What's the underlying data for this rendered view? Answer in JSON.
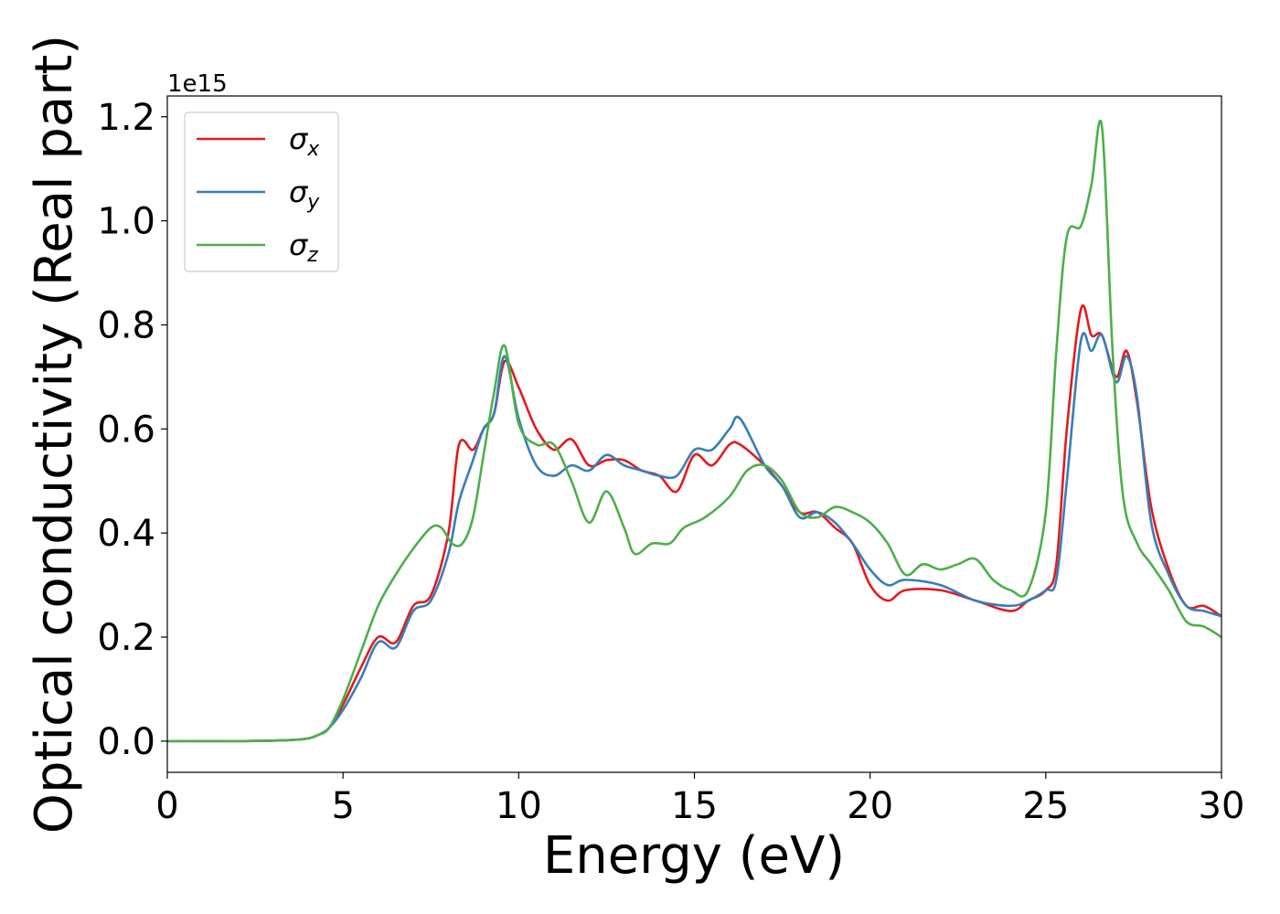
{
  "chart_data": {
    "type": "line",
    "xlabel": "Energy (eV)",
    "ylabel": "Optical conductivity (Real part)",
    "y_offset_label": "1e15",
    "xlim": [
      0,
      30
    ],
    "ylim": [
      -0.06,
      1.24
    ],
    "x_ticks": [
      0,
      5,
      10,
      15,
      20,
      25,
      30
    ],
    "x_tick_labels": [
      "0",
      "5",
      "10",
      "15",
      "20",
      "25",
      "30"
    ],
    "y_ticks": [
      0.0,
      0.2,
      0.4,
      0.6,
      0.8,
      1.0,
      1.2
    ],
    "y_tick_labels": [
      "0.0",
      "0.2",
      "0.4",
      "0.6",
      "0.8",
      "1.0",
      "1.2"
    ],
    "grid": false,
    "legend_position": "top-left",
    "series": [
      {
        "name": "σ",
        "subscript": "x",
        "color": "#e41a1c",
        "x": [
          0,
          2,
          3,
          3.5,
          4,
          4.3,
          4.6,
          5,
          5.5,
          6,
          6.5,
          7,
          7.5,
          8,
          8.3,
          8.7,
          9,
          9.3,
          9.6,
          10,
          10.5,
          11,
          11.5,
          12,
          12.5,
          13,
          13.5,
          14,
          14.5,
          15,
          15.5,
          16,
          16.3,
          17,
          17.5,
          18,
          18.5,
          19,
          19.5,
          20,
          20.5,
          21,
          22,
          23,
          24,
          24.5,
          25,
          25.3,
          25.6,
          26,
          26.3,
          26.6,
          27,
          27.3,
          27.6,
          28,
          28.5,
          29,
          29.5,
          30
        ],
        "y": [
          0,
          0,
          0.001,
          0.002,
          0.005,
          0.012,
          0.025,
          0.07,
          0.14,
          0.2,
          0.19,
          0.26,
          0.28,
          0.4,
          0.57,
          0.56,
          0.6,
          0.63,
          0.73,
          0.68,
          0.6,
          0.56,
          0.58,
          0.53,
          0.54,
          0.54,
          0.52,
          0.51,
          0.48,
          0.55,
          0.53,
          0.57,
          0.57,
          0.53,
          0.49,
          0.44,
          0.44,
          0.41,
          0.38,
          0.3,
          0.27,
          0.29,
          0.29,
          0.27,
          0.25,
          0.27,
          0.29,
          0.34,
          0.6,
          0.83,
          0.78,
          0.78,
          0.7,
          0.75,
          0.65,
          0.45,
          0.33,
          0.26,
          0.26,
          0.24
        ]
      },
      {
        "name": "σ",
        "subscript": "y",
        "color": "#377eb8",
        "x": [
          0,
          2,
          3,
          3.5,
          4,
          4.3,
          4.6,
          5,
          5.5,
          6,
          6.5,
          7,
          7.5,
          8,
          8.3,
          8.7,
          9,
          9.3,
          9.6,
          10,
          10.5,
          11,
          11.5,
          12,
          12.5,
          13,
          13.5,
          14,
          14.5,
          15,
          15.5,
          16,
          16.3,
          17,
          17.5,
          18,
          18.5,
          19,
          19.5,
          20,
          20.5,
          21,
          22,
          23,
          24,
          24.5,
          25,
          25.3,
          25.6,
          26,
          26.3,
          26.6,
          27,
          27.3,
          27.6,
          28,
          28.5,
          29,
          29.5,
          30
        ],
        "y": [
          0,
          0,
          0.001,
          0.002,
          0.005,
          0.012,
          0.025,
          0.06,
          0.12,
          0.19,
          0.18,
          0.25,
          0.27,
          0.36,
          0.46,
          0.54,
          0.6,
          0.63,
          0.74,
          0.62,
          0.53,
          0.51,
          0.53,
          0.52,
          0.55,
          0.53,
          0.52,
          0.51,
          0.51,
          0.56,
          0.56,
          0.6,
          0.62,
          0.53,
          0.49,
          0.43,
          0.44,
          0.42,
          0.38,
          0.33,
          0.3,
          0.31,
          0.3,
          0.27,
          0.26,
          0.27,
          0.29,
          0.31,
          0.5,
          0.77,
          0.75,
          0.78,
          0.69,
          0.74,
          0.66,
          0.42,
          0.32,
          0.26,
          0.25,
          0.24
        ]
      },
      {
        "name": "σ",
        "subscript": "z",
        "color": "#4daf4a",
        "x": [
          0,
          2,
          3,
          3.5,
          4,
          4.3,
          4.6,
          5,
          5.5,
          6,
          6.5,
          7,
          7.5,
          7.8,
          8.1,
          8.4,
          8.7,
          9,
          9.3,
          9.6,
          10,
          10.5,
          11,
          11.5,
          12,
          12.5,
          13,
          13.3,
          13.8,
          14.3,
          14.7,
          15.3,
          16,
          16.5,
          17,
          17.5,
          18,
          18.5,
          19,
          19.5,
          20,
          20.5,
          21,
          21.5,
          22,
          22.5,
          23,
          23.5,
          24,
          24.5,
          25,
          25.3,
          25.6,
          26,
          26.3,
          26.6,
          26.9,
          27.2,
          27.6,
          28,
          28.5,
          29,
          29.5,
          30
        ],
        "y": [
          0,
          0,
          0.001,
          0.002,
          0.005,
          0.012,
          0.025,
          0.08,
          0.17,
          0.26,
          0.32,
          0.37,
          0.41,
          0.41,
          0.38,
          0.38,
          0.43,
          0.55,
          0.67,
          0.76,
          0.61,
          0.57,
          0.57,
          0.5,
          0.42,
          0.48,
          0.41,
          0.36,
          0.38,
          0.38,
          0.41,
          0.43,
          0.47,
          0.52,
          0.53,
          0.5,
          0.44,
          0.43,
          0.45,
          0.44,
          0.42,
          0.38,
          0.32,
          0.34,
          0.33,
          0.34,
          0.35,
          0.31,
          0.29,
          0.29,
          0.44,
          0.75,
          0.97,
          0.99,
          1.07,
          1.18,
          0.75,
          0.47,
          0.38,
          0.34,
          0.29,
          0.23,
          0.22,
          0.2
        ]
      }
    ]
  }
}
